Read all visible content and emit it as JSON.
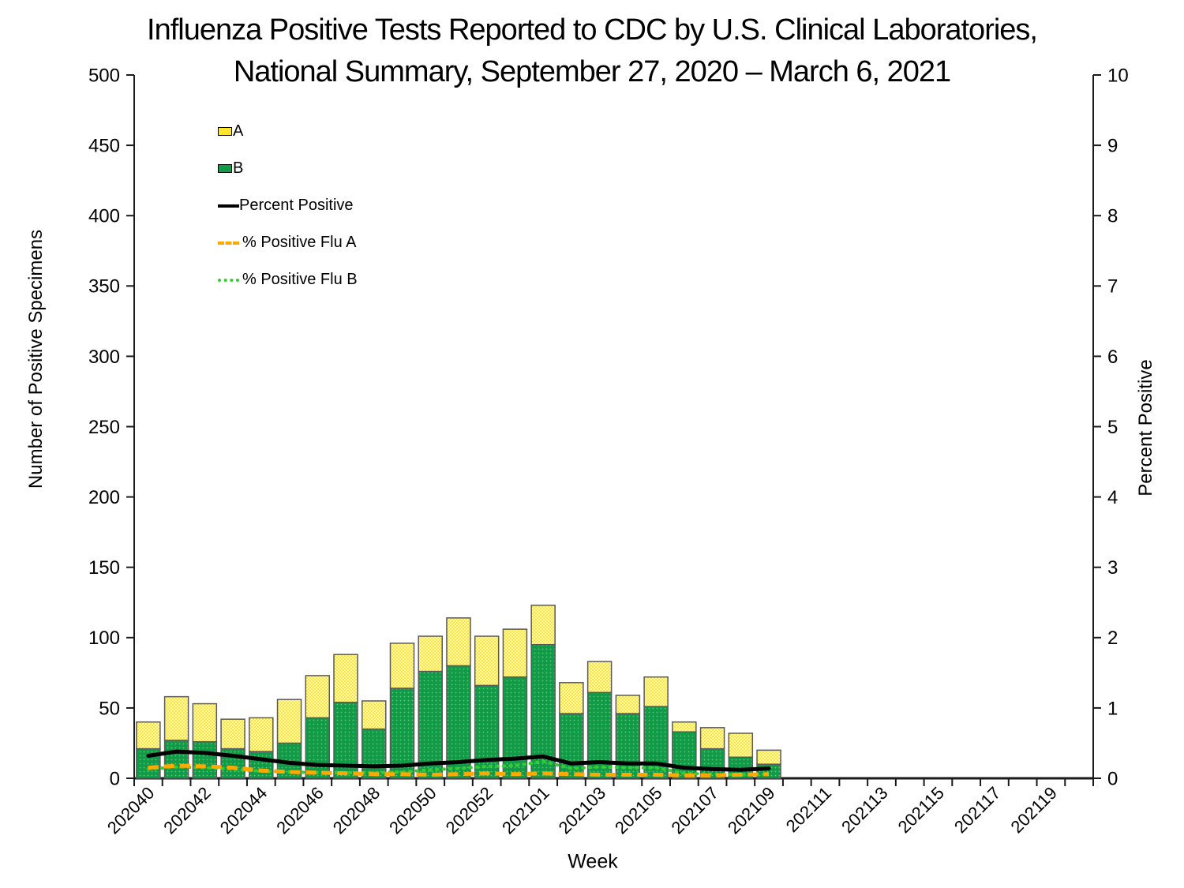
{
  "title": {
    "line1": "Influenza Positive Tests Reported to CDC by U.S. Clinical Laboratories,",
    "line2": "National Summary, September 27, 2020 – March 6, 2021"
  },
  "axes": {
    "y_left_title": "Number of Positive Specimens",
    "y_right_title": "Percent Positive",
    "x_title": "Week"
  },
  "legend": {
    "items": [
      {
        "label": "A",
        "marker": "box",
        "color_key": "flu_a"
      },
      {
        "label": "B",
        "marker": "box",
        "color_key": "flu_b"
      },
      {
        "label": "Percent Positive",
        "marker": "line-solid",
        "color_key": "pct"
      },
      {
        "label": "% Positive Flu A",
        "marker": "line-dashed",
        "color_key": "pct_a"
      },
      {
        "label": "% Positive Flu B",
        "marker": "line-dotted",
        "color_key": "pct_b"
      }
    ]
  },
  "colors": {
    "flu_a": "#ffe52e",
    "flu_a_light": "#fff9c0",
    "flu_b": "#119a47",
    "flu_b_dot": "#5ec878",
    "pct": "#000000",
    "pct_a": "#ffa800",
    "pct_b": "#33cc33",
    "bar_border": "#595959",
    "axis": "#1a1a1a"
  },
  "chart_data": {
    "type": "bar",
    "title": "Influenza Positive Tests Reported to CDC by U.S. Clinical Laboratories, National Summary, September 27, 2020 – March 6, 2021",
    "xlabel": "Week",
    "legend_position": "upper-left-inside",
    "grid": false,
    "x_axis": {
      "all_weeks": [
        "202040",
        "202041",
        "202042",
        "202043",
        "202044",
        "202045",
        "202046",
        "202047",
        "202048",
        "202049",
        "202050",
        "202051",
        "202052",
        "202053",
        "202101",
        "202102",
        "202103",
        "202104",
        "202105",
        "202106",
        "202107",
        "202108",
        "202109",
        "202110",
        "202111",
        "202112",
        "202113",
        "202114",
        "202115",
        "202116",
        "202117",
        "202118",
        "202119",
        "202120"
      ],
      "labeled_ticks": [
        "202040",
        "202042",
        "202044",
        "202046",
        "202048",
        "202050",
        "202052",
        "202101",
        "202103",
        "202105",
        "202107",
        "202109",
        "202111",
        "202113",
        "202115",
        "202117",
        "202119"
      ]
    },
    "y_left": {
      "label": "Number of Positive Specimens",
      "min": 0,
      "max": 500,
      "step": 50,
      "tick_labels": [
        "0",
        "50",
        "100",
        "150",
        "200",
        "250",
        "300",
        "350",
        "400",
        "450",
        "500"
      ]
    },
    "y_right": {
      "label": "Percent Positive",
      "min": 0,
      "max": 10,
      "step": 1,
      "tick_labels": [
        "0",
        "1",
        "2",
        "3",
        "4",
        "5",
        "6",
        "7",
        "8",
        "9",
        "10"
      ]
    },
    "data_weeks": [
      "202040",
      "202041",
      "202042",
      "202043",
      "202044",
      "202045",
      "202046",
      "202047",
      "202048",
      "202049",
      "202050",
      "202051",
      "202052",
      "202053",
      "202101",
      "202102",
      "202103",
      "202104",
      "202105",
      "202106",
      "202107",
      "202108",
      "202109"
    ],
    "series": [
      {
        "name": "A",
        "type": "bar",
        "stack": "positives",
        "axis": "left",
        "values": [
          19,
          31,
          27,
          21,
          24,
          31,
          30,
          34,
          20,
          32,
          25,
          34,
          35,
          34,
          28,
          22,
          22,
          13,
          21,
          7,
          15,
          17,
          10
        ]
      },
      {
        "name": "B",
        "type": "bar",
        "stack": "positives",
        "axis": "left",
        "values": [
          21,
          27,
          26,
          21,
          19,
          25,
          43,
          54,
          35,
          64,
          76,
          80,
          66,
          72,
          95,
          46,
          61,
          46,
          51,
          33,
          21,
          15,
          10
        ]
      },
      {
        "name": "Percent Positive",
        "type": "line",
        "style": "solid",
        "axis": "right",
        "values": [
          0.32,
          0.38,
          0.36,
          0.32,
          0.27,
          0.22,
          0.19,
          0.18,
          0.17,
          0.18,
          0.21,
          0.23,
          0.26,
          0.28,
          0.31,
          0.21,
          0.23,
          0.21,
          0.21,
          0.15,
          0.13,
          0.12,
          0.14
        ]
      },
      {
        "name": "% Positive Flu A",
        "type": "line",
        "style": "dashed",
        "axis": "right",
        "values": [
          0.15,
          0.18,
          0.17,
          0.15,
          0.11,
          0.09,
          0.08,
          0.07,
          0.06,
          0.06,
          0.05,
          0.06,
          0.07,
          0.06,
          0.07,
          0.06,
          0.05,
          0.05,
          0.05,
          0.04,
          0.04,
          0.05,
          0.06
        ]
      },
      {
        "name": "% Positive Flu B",
        "type": "line",
        "style": "dotted",
        "axis": "right",
        "values": [
          0.13,
          0.16,
          0.15,
          0.13,
          0.1,
          0.09,
          0.08,
          0.08,
          0.08,
          0.09,
          0.12,
          0.14,
          0.17,
          0.18,
          0.24,
          0.14,
          0.16,
          0.15,
          0.15,
          0.07,
          0.06,
          0.05,
          0.06
        ]
      }
    ]
  }
}
